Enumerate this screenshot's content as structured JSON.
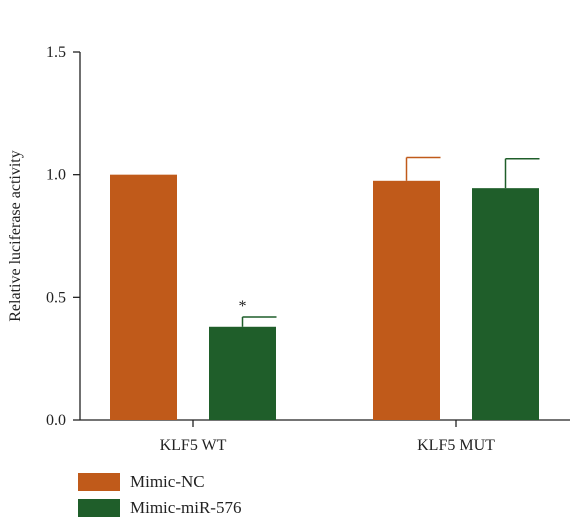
{
  "chart_data": {
    "type": "bar",
    "title": "",
    "ylabel": "Relative luciferase activity",
    "xlabel": "",
    "ylim": [
      0,
      1.5
    ],
    "yticks": [
      "0.0",
      "0.5",
      "1.0",
      "1.5"
    ],
    "categories": [
      "KLF5 WT",
      "KLF5 MUT"
    ],
    "series": [
      {
        "name": "Mimic-NC",
        "color": "#c05a1a",
        "values": [
          1.0,
          0.975
        ],
        "errors": [
          0,
          0.095
        ]
      },
      {
        "name": "Mimic-miR-576",
        "color": "#1f5e2a",
        "values": [
          0.38,
          0.945
        ],
        "errors": [
          0.04,
          0.12
        ]
      }
    ],
    "annotations": [
      {
        "text": "*",
        "category": "KLF5 WT",
        "series": "Mimic-miR-576"
      }
    ],
    "grid": false,
    "legend_position": "bottom-left"
  }
}
